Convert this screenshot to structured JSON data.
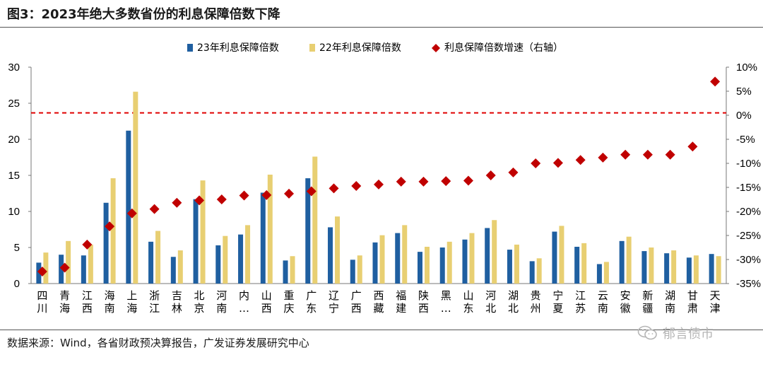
{
  "title": "图3：2023年绝大多数省份的利息保障倍数下降",
  "source": "数据来源：Wind，各省财政预决算报告，广发证券发展研究中心",
  "watermark": "郁言债市",
  "colors": {
    "bar23": "#1f5fa0",
    "bar22": "#e8cf72",
    "marker": "#c00000",
    "refline": "#e00000"
  },
  "chart_data": {
    "type": "bar",
    "categories": [
      "四川",
      "青海",
      "江西",
      "海南",
      "上海",
      "浙江",
      "吉林",
      "北京",
      "河南",
      "内…",
      "山西",
      "重庆",
      "广东",
      "辽宁",
      "广西",
      "西藏",
      "福建",
      "陕西",
      "黑…",
      "山东",
      "河北",
      "湖北",
      "贵州",
      "宁夏",
      "江苏",
      "云南",
      "安徽",
      "新疆",
      "湖南",
      "甘肃",
      "天津"
    ],
    "series": [
      {
        "name": "23年利息保障倍数",
        "type": "bar",
        "axis": "left",
        "values": [
          2.9,
          4.0,
          3.9,
          11.2,
          21.2,
          5.8,
          3.7,
          11.7,
          5.3,
          6.8,
          12.6,
          3.2,
          14.6,
          7.8,
          3.3,
          5.7,
          7.0,
          4.4,
          5.0,
          6.1,
          7.7,
          4.7,
          3.1,
          7.2,
          5.1,
          2.7,
          5.9,
          4.5,
          4.2,
          3.6,
          4.1
        ]
      },
      {
        "name": "22年利息保障倍数",
        "type": "bar",
        "axis": "left",
        "values": [
          4.3,
          5.9,
          5.4,
          14.6,
          26.6,
          7.3,
          4.6,
          14.3,
          6.6,
          8.1,
          15.1,
          3.8,
          17.6,
          9.3,
          3.9,
          6.7,
          8.1,
          5.1,
          5.8,
          7.0,
          8.8,
          5.4,
          3.5,
          8.0,
          5.6,
          3.0,
          6.5,
          5.0,
          4.6,
          3.9,
          3.8
        ]
      },
      {
        "name": "利息保障倍数增速（右轴）",
        "type": "scatter",
        "axis": "right",
        "unit": "%",
        "values": [
          -32.5,
          -31.7,
          -26.9,
          -23.1,
          -20.4,
          -19.5,
          -18.2,
          -17.7,
          -17.5,
          -16.7,
          -16.6,
          -16.3,
          -15.8,
          -15.2,
          -14.7,
          -14.4,
          -13.8,
          -13.8,
          -13.7,
          -13.6,
          -12.5,
          -11.9,
          -10.0,
          -9.9,
          -9.3,
          -8.8,
          -8.2,
          -8.2,
          -8.2,
          -6.5,
          7.0
        ]
      }
    ],
    "reference_line": {
      "axis": "right",
      "value": 0.5,
      "style": "dashed"
    },
    "y_left": {
      "min": 0,
      "max": 30,
      "ticks": [
        0,
        5,
        10,
        15,
        20,
        25,
        30
      ]
    },
    "y_right": {
      "min": -35,
      "max": 10,
      "ticks": [
        10,
        5,
        0,
        -5,
        -10,
        -15,
        -20,
        -25,
        -30,
        -35
      ],
      "tick_labels": [
        "10%",
        "5%",
        "0%",
        "-5%",
        "-10%",
        "-15%",
        "-20%",
        "-25%",
        "-30%",
        "-35%"
      ]
    },
    "legend_position": "top",
    "grid": false
  }
}
